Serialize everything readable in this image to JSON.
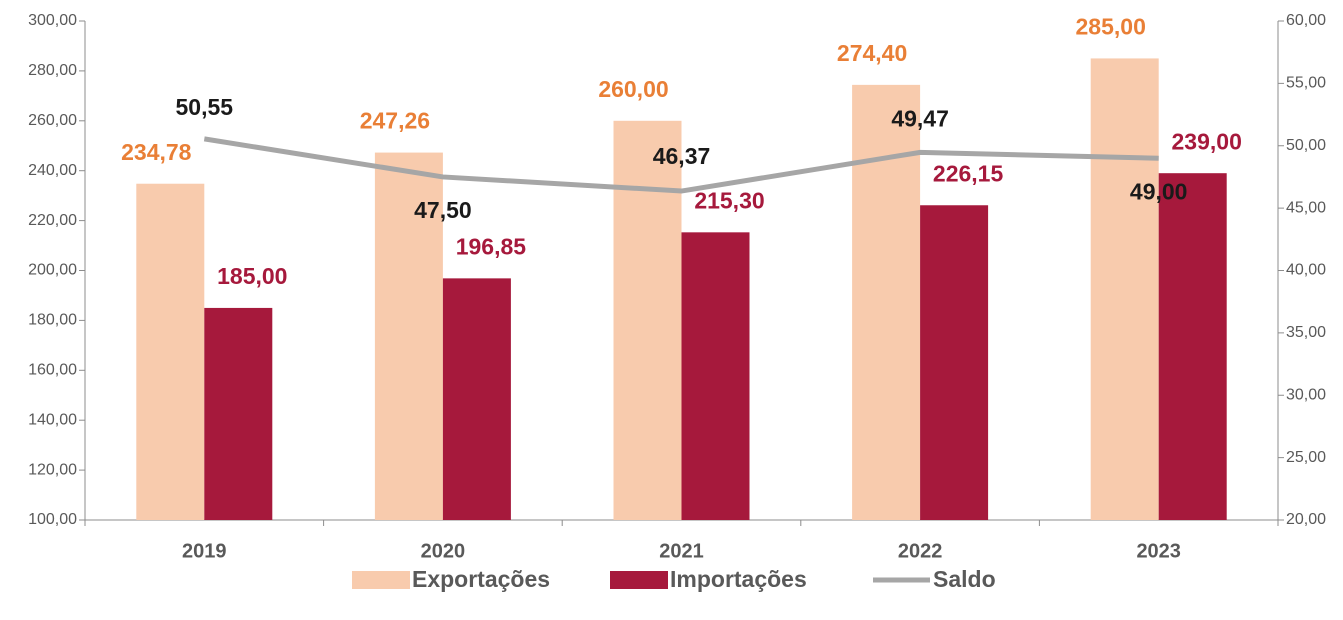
{
  "chart_data": {
    "type": "bar",
    "categories": [
      "2019",
      "2020",
      "2021",
      "2022",
      "2023"
    ],
    "series": [
      {
        "name": "Exportações",
        "color": "#f8cbad",
        "label_color": "#e97f36",
        "values": [
          234.78,
          247.26,
          260,
          274.4,
          285
        ],
        "value_labels": [
          "234,78",
          "247,26",
          "260,00",
          "274,40",
          "285,00"
        ]
      },
      {
        "name": "Importações",
        "color": "#a6193c",
        "label_color": "#a6193c",
        "values": [
          185,
          196.85,
          215.3,
          226.15,
          239
        ],
        "value_labels": [
          "185,00",
          "196,85",
          "215,30",
          "226,15",
          "239,00"
        ]
      },
      {
        "name": "Saldo",
        "type": "line",
        "axis": "y2",
        "color": "#a6a6a6",
        "label_color": "#1a1a1a",
        "values": [
          50.55,
          47.5,
          46.37,
          49.47,
          49
        ],
        "value_labels": [
          "50,55",
          "47,50",
          "46,37",
          "49,47",
          "49,00"
        ]
      }
    ],
    "ylim": [
      100,
      300
    ],
    "yticks": [
      {
        "value": 100,
        "label": "100,00"
      },
      {
        "value": 120,
        "label": "120,00"
      },
      {
        "value": 140,
        "label": "140,00"
      },
      {
        "value": 160,
        "label": "160,00"
      },
      {
        "value": 180,
        "label": "180,00"
      },
      {
        "value": 200,
        "label": "200,00"
      },
      {
        "value": 220,
        "label": "220,00"
      },
      {
        "value": 240,
        "label": "240,00"
      },
      {
        "value": 260,
        "label": "260,00"
      },
      {
        "value": 280,
        "label": "280,00"
      },
      {
        "value": 300,
        "label": "300,00"
      }
    ],
    "y2lim": [
      20,
      60
    ],
    "y2ticks": [
      {
        "value": 20,
        "label": "20,00"
      },
      {
        "value": 25,
        "label": "25,00"
      },
      {
        "value": 30,
        "label": "30,00"
      },
      {
        "value": 35,
        "label": "35,00"
      },
      {
        "value": 40,
        "label": "40,00"
      },
      {
        "value": 45,
        "label": "45,00"
      },
      {
        "value": 50,
        "label": "50,00"
      },
      {
        "value": 55,
        "label": "55,00"
      },
      {
        "value": 60,
        "label": "60,00"
      }
    ],
    "legend": "bottom"
  }
}
